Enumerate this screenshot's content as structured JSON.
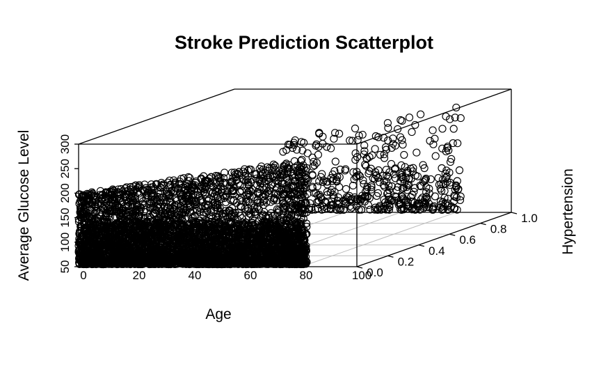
{
  "chart_data": {
    "type": "scatter",
    "projection": "3d-perspective",
    "title": "Stroke Prediction Scatterplot",
    "xlabel": "Age",
    "ylabel": "Average Glucose Level",
    "zlabel": "Hypertension",
    "xlim": [
      0,
      100
    ],
    "ylim": [
      50,
      300
    ],
    "zlim": [
      0,
      1
    ],
    "x_ticks": [
      "0",
      "20",
      "40",
      "60",
      "80",
      "100"
    ],
    "y_ticks": [
      "50",
      "100",
      "150",
      "200",
      "250",
      "300"
    ],
    "z_ticks": [
      "0.0",
      "0.2",
      "0.4",
      "0.6",
      "0.8",
      "1.0"
    ],
    "grid": true,
    "marker": "open-circle",
    "marker_color": "#000000",
    "legend": "none",
    "series": [
      {
        "hypertension": 0,
        "age_range": [
          0,
          82
        ],
        "glucose_dense_range": [
          55,
          140
        ],
        "glucose_sparse_range": [
          140,
          270
        ],
        "count": 4600
      },
      {
        "hypertension": 1,
        "age_range": [
          17,
          82
        ],
        "glucose_dense_range": [
          55,
          140
        ],
        "glucose_sparse_range": [
          140,
          270
        ],
        "count": 500
      }
    ]
  }
}
